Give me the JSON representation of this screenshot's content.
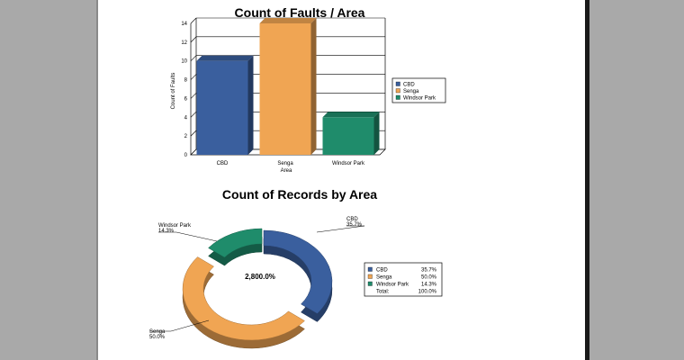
{
  "chart_data": [
    {
      "type": "bar",
      "title": "Count of Faults / Area",
      "xlabel": "Area",
      "ylabel": "Count of Faults",
      "categories": [
        "CBD",
        "Senga",
        "Windsor Park"
      ],
      "values": [
        10,
        14,
        4
      ],
      "colors": [
        "#3a5f9e",
        "#f0a553",
        "#1f8c6b"
      ],
      "ylim": [
        0,
        14
      ],
      "yticks": [
        0,
        2,
        4,
        6,
        8,
        10,
        12,
        14
      ],
      "grid": true,
      "legend": {
        "position": "right",
        "entries": [
          "CBD",
          "Senga",
          "Windsor Park"
        ]
      }
    },
    {
      "type": "pie",
      "variant": "donut",
      "title": "Count of Records by Area",
      "categories": [
        "CBD",
        "Senga",
        "Windsor Park"
      ],
      "values": [
        35.7,
        50.0,
        14.3
      ],
      "labels": [
        "35.7%",
        "50.0%",
        "14.3%"
      ],
      "colors": [
        "#3a5f9e",
        "#f0a553",
        "#1f8c6b"
      ],
      "center_label": "2,800.0%",
      "legend": {
        "position": "right",
        "rows": [
          {
            "name": "CBD",
            "value": "35.7%"
          },
          {
            "name": "Senga",
            "value": "50.0%"
          },
          {
            "name": "Windsor Park",
            "value": "14.3%"
          },
          {
            "name": "Total:",
            "value": "100.0%"
          }
        ]
      }
    }
  ]
}
